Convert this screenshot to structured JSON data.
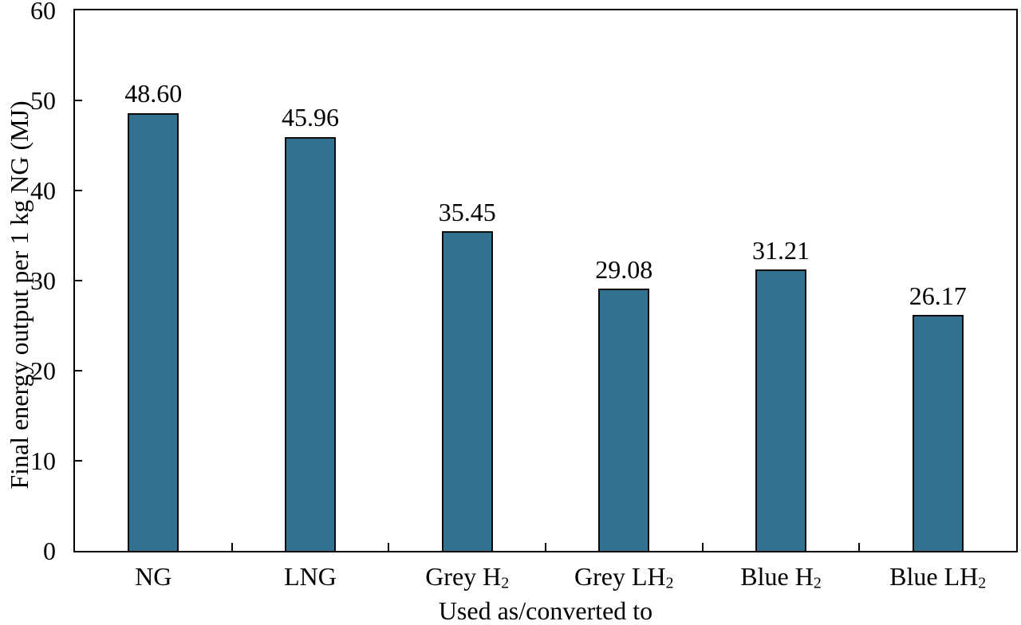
{
  "chart_data": {
    "type": "bar",
    "title": "",
    "xlabel": "Used as/converted to",
    "ylabel": "Final energy output per 1 kg NG (MJ)",
    "categories": [
      "NG",
      "LNG",
      "Grey H₂",
      "Grey LH₂",
      "Blue H₂",
      "Blue LH₂"
    ],
    "categories_rich": [
      {
        "base": "NG",
        "sub": ""
      },
      {
        "base": "LNG",
        "sub": ""
      },
      {
        "base": "Grey H",
        "sub": "2"
      },
      {
        "base": "Grey LH",
        "sub": "2"
      },
      {
        "base": "Blue H",
        "sub": "2"
      },
      {
        "base": "Blue LH",
        "sub": "2"
      }
    ],
    "values": [
      48.6,
      45.96,
      35.45,
      29.08,
      31.21,
      26.17
    ],
    "bar_labels": [
      "48.60",
      "45.96",
      "35.45",
      "29.08",
      "31.21",
      "26.17"
    ],
    "ylim": [
      0,
      60
    ],
    "yticks": [
      0,
      10,
      20,
      30,
      40,
      50,
      60
    ],
    "ytick_labels": [
      "0",
      "10",
      "20",
      "30",
      "40",
      "50",
      "60"
    ],
    "grid": false,
    "legend": "none",
    "bar_color": "#34708f",
    "bar_border_color": "#0c0c0c",
    "axis_color": "#000000",
    "background_color": "#ffffff"
  }
}
